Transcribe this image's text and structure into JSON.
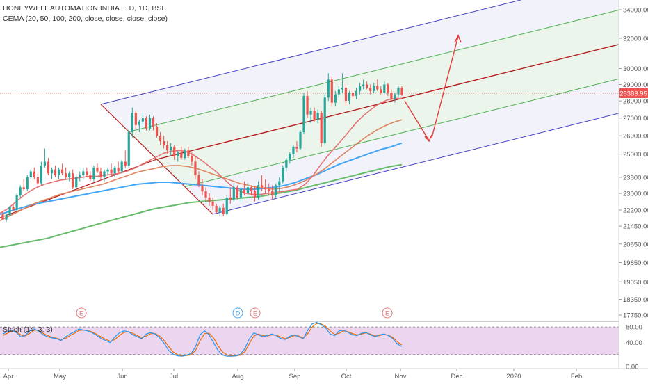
{
  "legend": {
    "title": "HONEYWELL AUTOMATION INDIA LTD, 1D, BSE",
    "indicator": "CEMA (20, 50, 100, 200, close, close, close, close)",
    "stoch": "Stoch (14, 3, 3)"
  },
  "last_price": "28383.95",
  "colors": {
    "up": "#26a69a",
    "down": "#ef5350",
    "ema20": "#e57373",
    "ema50": "#e0845f",
    "ema100": "#42a5f5",
    "ema200": "#66bb6a",
    "pitchfork_outer": "#3f3fbf",
    "pitchfork_inner": "#4caf50",
    "pitchfork_median": "#b71c1c",
    "channel_fill_outer": "#e8eaf6",
    "channel_fill_inner": "#e8f5e9",
    "projection": "#e53935",
    "stoch_band": "#e1bee7",
    "stoch_k": "#2196f3",
    "stoch_d": "#ef6c00",
    "event_earnings": "#e57373",
    "event_dividend": "#42a5f5"
  },
  "chart_data": {
    "type": "candlestick",
    "title": "HONEYWELL AUTOMATION INDIA LTD, 1D, BSE",
    "price_axis": {
      "scale": "log",
      "ticks": [
        "34000.00",
        "32000.00",
        "30000.00",
        "29000.00",
        "28000.00",
        "27000.00",
        "26000.00",
        "25000.00",
        "23800.00",
        "23000.00",
        "22200.00",
        "21450.00",
        "20650.00",
        "19850.00",
        "19050.00",
        "18350.00",
        "17750.00"
      ],
      "last_price_label": "28383.95"
    },
    "time_axis": {
      "ticks": [
        "Apr",
        "May",
        "Jun",
        "Jul",
        "Aug",
        "Sep",
        "Oct",
        "Nov",
        "Dec",
        "2020",
        "Feb"
      ]
    },
    "candles": [
      [
        22000,
        22150,
        21800,
        21750
      ],
      [
        21750,
        22000,
        21650,
        21950
      ],
      [
        21950,
        22400,
        21900,
        22350
      ],
      [
        22350,
        22500,
        22150,
        22200
      ],
      [
        22200,
        23000,
        22150,
        22900
      ],
      [
        22900,
        23400,
        22800,
        23300
      ],
      [
        23300,
        23700,
        23100,
        23200
      ],
      [
        23200,
        23900,
        23100,
        23800
      ],
      [
        23800,
        24200,
        23700,
        24100
      ],
      [
        24100,
        24300,
        23700,
        23800
      ],
      [
        23800,
        24000,
        23400,
        23500
      ],
      [
        23500,
        24600,
        23400,
        24400
      ],
      [
        24400,
        25300,
        24300,
        24600
      ],
      [
        24600,
        24800,
        23900,
        24000
      ],
      [
        24000,
        24300,
        23700,
        24200
      ],
      [
        24200,
        24400,
        23800,
        23900
      ],
      [
        23900,
        24300,
        23700,
        24200
      ],
      [
        24200,
        24500,
        23900,
        24000
      ],
      [
        24000,
        24300,
        23700,
        23800
      ],
      [
        23800,
        24100,
        23600,
        24000
      ],
      [
        24000,
        24200,
        23200,
        23300
      ],
      [
        23300,
        23900,
        23200,
        23800
      ],
      [
        23800,
        24100,
        23600,
        23900
      ],
      [
        23900,
        24300,
        23700,
        24100
      ],
      [
        24100,
        24300,
        23800,
        23900
      ],
      [
        23900,
        24100,
        23600,
        23700
      ],
      [
        23700,
        24400,
        23600,
        24300
      ],
      [
        24300,
        24500,
        24000,
        24100
      ],
      [
        24100,
        24300,
        23700,
        23800
      ],
      [
        23800,
        24200,
        23600,
        24100
      ],
      [
        24100,
        24300,
        23900,
        24200
      ],
      [
        24200,
        24500,
        23900,
        24000
      ],
      [
        24000,
        24400,
        23800,
        24300
      ],
      [
        24300,
        24600,
        24000,
        24100
      ],
      [
        24100,
        24700,
        24000,
        24600
      ],
      [
        24600,
        25200,
        24300,
        24400
      ],
      [
        24400,
        26400,
        24300,
        26200
      ],
      [
        26200,
        27600,
        25900,
        27300
      ],
      [
        27300,
        27400,
        26400,
        26600
      ],
      [
        26600,
        26900,
        26200,
        26800
      ],
      [
        26800,
        27300,
        26500,
        27000
      ],
      [
        27000,
        27100,
        26300,
        26400
      ],
      [
        26400,
        27200,
        26300,
        27000
      ],
      [
        27000,
        27100,
        26300,
        26500
      ],
      [
        26500,
        26700,
        25900,
        26000
      ],
      [
        26000,
        26200,
        25500,
        25700
      ],
      [
        25700,
        26000,
        25300,
        25500
      ],
      [
        25500,
        25700,
        25000,
        25200
      ],
      [
        25200,
        25600,
        24900,
        25400
      ],
      [
        25400,
        25500,
        24700,
        24900
      ],
      [
        24900,
        25200,
        24600,
        25100
      ],
      [
        25100,
        25400,
        24700,
        24800
      ],
      [
        24800,
        25300,
        24700,
        25200
      ],
      [
        25200,
        25400,
        24800,
        24900
      ],
      [
        24900,
        25100,
        24400,
        24600
      ],
      [
        24600,
        24900,
        23700,
        23900
      ],
      [
        23900,
        24100,
        23300,
        23400
      ],
      [
        23400,
        23700,
        22900,
        23100
      ],
      [
        23100,
        23300,
        22600,
        22800
      ],
      [
        22800,
        23000,
        22400,
        22600
      ],
      [
        22600,
        22800,
        22200,
        22400
      ],
      [
        22400,
        22500,
        22000,
        22100
      ],
      [
        22100,
        22400,
        21900,
        22300
      ],
      [
        22300,
        22500,
        21900,
        22000
      ],
      [
        22000,
        22900,
        21950,
        22800
      ],
      [
        22800,
        23300,
        22500,
        22700
      ],
      [
        22700,
        23500,
        22600,
        23300
      ],
      [
        23300,
        23400,
        22700,
        22800
      ],
      [
        22800,
        23300,
        22600,
        23200
      ],
      [
        23200,
        23600,
        22900,
        23000
      ],
      [
        23000,
        23500,
        22800,
        23300
      ],
      [
        23300,
        23400,
        22900,
        23100
      ],
      [
        23100,
        23300,
        22600,
        22800
      ],
      [
        22800,
        23600,
        22700,
        23400
      ],
      [
        23400,
        23900,
        23100,
        23300
      ],
      [
        23300,
        23700,
        23000,
        23200
      ],
      [
        23200,
        23500,
        22900,
        23100
      ],
      [
        23100,
        23400,
        22700,
        22900
      ],
      [
        22900,
        23500,
        22800,
        23400
      ],
      [
        23400,
        23800,
        23100,
        23600
      ],
      [
        23600,
        24400,
        23500,
        24300
      ],
      [
        24300,
        24800,
        24100,
        24700
      ],
      [
        24700,
        25100,
        24500,
        25000
      ],
      [
        25000,
        25500,
        24800,
        25400
      ],
      [
        25400,
        25700,
        25100,
        25300
      ],
      [
        25300,
        26300,
        25200,
        26200
      ],
      [
        26200,
        28500,
        26100,
        28300
      ],
      [
        28300,
        28600,
        27000,
        27200
      ],
      [
        27200,
        27600,
        26700,
        27400
      ],
      [
        27400,
        27600,
        26800,
        26900
      ],
      [
        26900,
        27500,
        26700,
        27300
      ],
      [
        27300,
        27400,
        25400,
        25600
      ],
      [
        25600,
        28400,
        25500,
        28200
      ],
      [
        28200,
        29700,
        28000,
        29300
      ],
      [
        29300,
        29500,
        27700,
        27900
      ],
      [
        27900,
        28600,
        27700,
        28400
      ],
      [
        28400,
        28900,
        28200,
        28700
      ],
      [
        28700,
        29700,
        28500,
        28800
      ],
      [
        28800,
        29000,
        27700,
        28000
      ],
      [
        28000,
        28600,
        27800,
        28500
      ],
      [
        28500,
        28700,
        28100,
        28300
      ],
      [
        28300,
        28800,
        28100,
        28600
      ],
      [
        28600,
        29100,
        28400,
        28900
      ],
      [
        28900,
        29300,
        28700,
        29000
      ],
      [
        29000,
        29200,
        28700,
        28800
      ],
      [
        28800,
        29000,
        28400,
        28600
      ],
      [
        28600,
        29100,
        28500,
        28900
      ],
      [
        28900,
        29300,
        28600,
        28700
      ],
      [
        28700,
        28900,
        28400,
        28500
      ],
      [
        28500,
        29200,
        28400,
        29000
      ],
      [
        29000,
        29100,
        28300,
        28500
      ],
      [
        28500,
        28700,
        28000,
        28100
      ],
      [
        28100,
        28500,
        27900,
        28400
      ],
      [
        28400,
        28900,
        28200,
        28800
      ],
      [
        28800,
        28900,
        28300,
        28384
      ]
    ],
    "ema20": [
      22050,
      22250,
      22550,
      22850,
      23100,
      23300,
      23450,
      23550,
      23650,
      23700,
      23750,
      23800,
      23850,
      23850,
      23900,
      23950,
      24000,
      24100,
      24250,
      24450,
      24650,
      24850,
      25050,
      25150,
      25200,
      25150,
      24950,
      24700,
      24400,
      24100,
      23750,
      23400,
      23150,
      23000,
      22950,
      22950,
      23000,
      23050,
      23100,
      23150,
      23200,
      23450,
      23850,
      24400,
      24900,
      25350,
      25800,
      26300,
      26800,
      27200,
      27550,
      27850,
      28050,
      28150,
      28150
    ],
    "ema50": [
      21700,
      21900,
      22100,
      22300,
      22500,
      22650,
      22800,
      22950,
      23050,
      23150,
      23250,
      23350,
      23450,
      23600,
      23750,
      23900,
      24050,
      24150,
      24250,
      24350,
      24400,
      24400,
      24350,
      24250,
      24100,
      23950,
      23800,
      23650,
      23500,
      23400,
      23300,
      23250,
      23200,
      23250,
      23350,
      23500,
      23700,
      23950,
      24250,
      24600,
      24950,
      25300,
      25650,
      26000,
      26300,
      26550,
      26750,
      26900
    ],
    "ema100": [
      22000,
      22150,
      22300,
      22450,
      22550,
      22650,
      22750,
      22850,
      22950,
      23050,
      23150,
      23250,
      23350,
      23450,
      23500,
      23550,
      23550,
      23500,
      23450,
      23400,
      23350,
      23300,
      23250,
      23200,
      23200,
      23250,
      23300,
      23400,
      23550,
      23750,
      23950,
      24200,
      24450,
      24650,
      24850,
      25050,
      25250,
      25400,
      25600
    ],
    "ema200": [
      20500,
      20600,
      20700,
      20800,
      20900,
      21050,
      21200,
      21350,
      21500,
      21650,
      21800,
      21950,
      22100,
      22250,
      22350,
      22450,
      22550,
      22600,
      22650,
      22700,
      22750,
      22800,
      22850,
      22950,
      23050,
      23150,
      23300,
      23450,
      23600,
      23750,
      23900,
      24050,
      24200,
      24350,
      24450
    ],
    "stochastic": {
      "name": "Stoch (14, 3, 3)",
      "levels": [
        "80.00",
        "40.00",
        "0.00"
      ],
      "k": [
        62,
        68,
        72,
        66,
        55,
        58,
        70,
        75,
        70,
        60,
        55,
        52,
        50,
        45,
        55,
        62,
        68,
        75,
        72,
        70,
        65,
        58,
        50,
        45,
        40,
        55,
        65,
        70,
        68,
        60,
        55,
        50,
        62,
        66,
        62,
        52,
        38,
        20,
        10,
        6,
        5,
        8,
        12,
        30,
        60,
        70,
        60,
        40,
        20,
        8,
        5,
        5,
        6,
        10,
        25,
        50,
        65,
        60,
        55,
        58,
        62,
        58,
        50,
        48,
        56,
        60,
        55,
        50,
        72,
        88,
        92,
        86,
        78,
        62,
        58,
        70,
        72,
        66,
        60,
        58,
        64,
        66,
        60,
        55,
        60,
        62,
        58,
        50,
        36,
        30
      ],
      "d": [
        58,
        64,
        70,
        68,
        60,
        57,
        64,
        72,
        71,
        64,
        58,
        54,
        51,
        48,
        51,
        58,
        64,
        71,
        72,
        71,
        67,
        61,
        54,
        48,
        43,
        48,
        58,
        66,
        68,
        64,
        58,
        53,
        57,
        63,
        63,
        57,
        45,
        30,
        16,
        9,
        6,
        7,
        9,
        20,
        45,
        63,
        64,
        52,
        32,
        16,
        8,
        6,
        6,
        8,
        17,
        38,
        57,
        62,
        58,
        57,
        60,
        59,
        54,
        50,
        53,
        58,
        57,
        52,
        63,
        80,
        89,
        88,
        82,
        70,
        61,
        64,
        70,
        68,
        63,
        60,
        62,
        65,
        62,
        57,
        58,
        61,
        59,
        53,
        42,
        34
      ]
    },
    "events": [
      {
        "label": "E",
        "kind": "earnings"
      },
      {
        "label": "D",
        "kind": "dividend"
      },
      {
        "label": "E",
        "kind": "earnings"
      },
      {
        "label": "E",
        "kind": "earnings"
      }
    ],
    "drawings": {
      "pitchfork": {
        "pivot_start": [
          22000,
          27800
        ],
        "pivot_low": 22000
      },
      "projection": "down-then-up"
    }
  }
}
